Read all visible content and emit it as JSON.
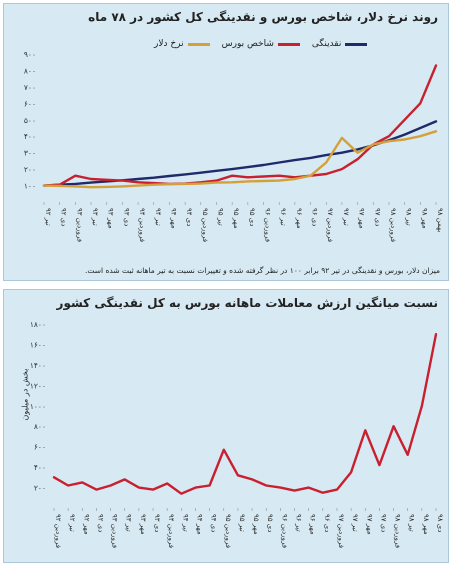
{
  "charts": {
    "top": {
      "title": "روند نرخ دلار، شاخص بورس و نقدینگی کل کشور در ۷۸ ماه",
      "legend": [
        {
          "name": "نقدینگی",
          "color": "#1f2a6b"
        },
        {
          "name": "شاخص بورس",
          "color": "#c8202f"
        },
        {
          "name": "نرخ دلار",
          "color": "#d4a03a"
        }
      ],
      "note": "میزان دلار، بورس و نقدینگی در تیر ۹۲ برابر ۱۰۰ در نظر گرفته شده و تغییرات نسبت به تیر ماهانه ثبت شده است."
    },
    "bottom": {
      "title": "نسبت میانگین ارزش معاملات ماهانه بورس به کل نقدینگی کشور",
      "ylabel": "بخش در میلیون"
    }
  },
  "chart_data": [
    {
      "type": "line",
      "title": "روند نرخ دلار، شاخص بورس و نقدینگی کل کشور در ۷۸ ماه",
      "ylim": [
        0,
        900
      ],
      "yticks": [
        "۱۰۰",
        "۲۰۰",
        "۳۰۰",
        "۴۰۰",
        "۵۰۰",
        "۶۰۰",
        "۷۰۰",
        "۸۰۰",
        "۹۰۰"
      ],
      "ytick_values": [
        100,
        200,
        300,
        400,
        500,
        600,
        700,
        800,
        900
      ],
      "x_labels": [
        "تیر ۹۲",
        "دی ۹۲",
        "فروردین ۹۳",
        "تیر ۹۳",
        "مهر ۹۳",
        "دی ۹۳",
        "فروردین ۹۴",
        "تیر ۹۴",
        "مهر ۹۴",
        "دی ۹۴",
        "فروردین ۹۵",
        "تیر ۹۵",
        "مهر ۹۵",
        "دی ۹۵",
        "فروردین ۹۶",
        "تیر ۹۶",
        "مهر ۹۶",
        "دی ۹۶",
        "فروردین ۹۷",
        "تیر ۹۷",
        "مهر ۹۷",
        "دی ۹۷",
        "فروردین ۹۸",
        "تیر ۹۸",
        "مهر ۹۸",
        "بهمن ۹۸"
      ],
      "series": [
        {
          "name": "نقدینگی",
          "color": "#1f2a6b",
          "values": [
            100,
            105,
            110,
            118,
            125,
            132,
            140,
            148,
            158,
            168,
            178,
            190,
            200,
            212,
            225,
            240,
            255,
            268,
            285,
            300,
            320,
            345,
            375,
            410,
            450,
            490
          ]
        },
        {
          "name": "شاخص بورس",
          "color": "#c8202f",
          "values": [
            100,
            105,
            160,
            140,
            135,
            130,
            120,
            115,
            110,
            112,
            120,
            130,
            160,
            150,
            155,
            160,
            150,
            160,
            170,
            200,
            260,
            350,
            400,
            500,
            600,
            830
          ]
        },
        {
          "name": "نرخ دلار",
          "color": "#d4a03a",
          "values": [
            100,
            98,
            95,
            90,
            92,
            95,
            100,
            105,
            108,
            110,
            112,
            118,
            120,
            125,
            128,
            130,
            140,
            160,
            240,
            390,
            300,
            350,
            370,
            380,
            400,
            430
          ]
        }
      ]
    },
    {
      "type": "line",
      "title": "نسبت میانگین ارزش معاملات ماهانه بورس به کل نقدینگی کشور",
      "ylabel": "بخش در میلیون",
      "ylim": [
        0,
        1800
      ],
      "yticks": [
        "۲۰۰",
        "۴۰۰",
        "۶۰۰",
        "۸۰۰",
        "۱۰۰۰",
        "۱۲۰۰",
        "۱۴۰۰",
        "۱۶۰۰",
        "۱۸۰۰"
      ],
      "ytick_values": [
        200,
        400,
        600,
        800,
        1000,
        1200,
        1400,
        1600,
        1800
      ],
      "x_labels": [
        "فروردین ۹۲",
        "تیر ۹۲",
        "مهر ۹۲",
        "دی ۹۲",
        "فروردین ۹۳",
        "تیر ۹۳",
        "مهر ۹۳",
        "دی ۹۳",
        "فروردین ۹۴",
        "تیر ۹۴",
        "مهر ۹۴",
        "دی ۹۴",
        "فروردین ۹۵",
        "تیر ۹۵",
        "مهر ۹۵",
        "دی ۹۵",
        "فروردین ۹۶",
        "تیر ۹۶",
        "مهر ۹۶",
        "دی ۹۶",
        "فروردین ۹۷",
        "تیر ۹۷",
        "مهر ۹۷",
        "دی ۹۷",
        "فروردین ۹۸",
        "تیر ۹۸",
        "مهر ۹۸",
        "دی ۹۸"
      ],
      "series": [
        {
          "name": "",
          "color": "#c8202f",
          "values": [
            300,
            220,
            250,
            180,
            220,
            280,
            200,
            180,
            240,
            140,
            200,
            220,
            570,
            320,
            280,
            220,
            200,
            170,
            200,
            150,
            180,
            350,
            760,
            420,
            800,
            520,
            1000,
            1700
          ]
        }
      ]
    }
  ]
}
